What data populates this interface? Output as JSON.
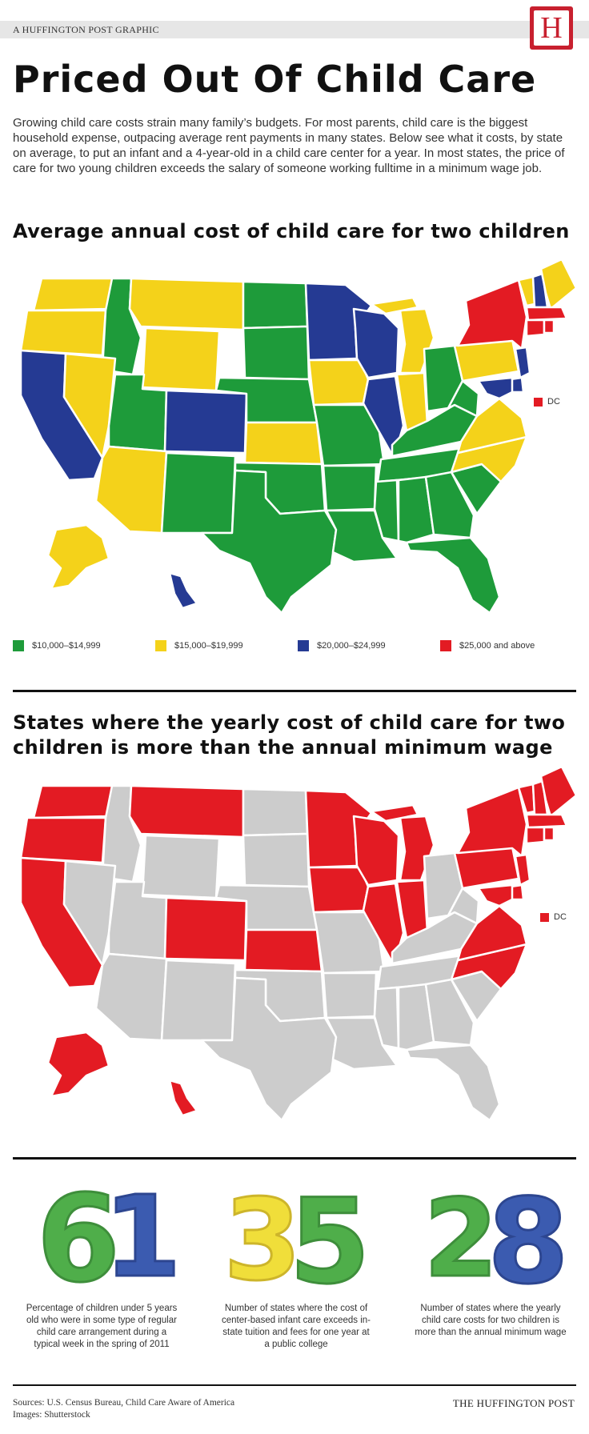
{
  "header": {
    "brand_line": "A HUFFINGTON POST GRAPHIC",
    "logo_letter": "H",
    "logo_color": "#c8202f"
  },
  "title": "Priced Out Of Child Care",
  "intro": "Growing child care costs strain many family’s budgets. For most parents, child care is the biggest household expense, outpacing average rent payments in many states. Below see what it costs, by state on average, to put an infant and a 4-year-old in a child care center for a year. In most states, the price of care for two young children exceeds the salary of someone working fulltime in a minimum wage job.",
  "map1": {
    "heading": "Average annual cost of child care for two children",
    "dc_label": "DC",
    "legend": [
      {
        "label": "$10,000–$14,999",
        "color": "#1e9b3a"
      },
      {
        "label": "$15,000–$19,999",
        "color": "#f4d21a"
      },
      {
        "label": "$20,000–$24,999",
        "color": "#253a93"
      },
      {
        "label": "$25,000 and above",
        "color": "#e31b23"
      }
    ]
  },
  "map2": {
    "heading": "States where the yearly cost of child care for two children is more than the annual minimum wage",
    "dc_label": "DC",
    "highlight_color": "#e31b23",
    "other_color": "#cccccc"
  },
  "stats": [
    {
      "number": "61",
      "caption": "Percentage of children under 5 years old who were in some type of regular child care arrangement during a typical week in the spring of 2011",
      "colors": [
        "#4fae4a",
        "#3b5bb0"
      ]
    },
    {
      "number": "35",
      "caption": "Number of states where the cost of center-based infant care exceeds in-state tuition and fees for one year at a public college",
      "colors": [
        "#f0de3a",
        "#4fae4a"
      ]
    },
    {
      "number": "28",
      "caption": "Number of states where the yearly child care costs for two children is more than the annual minimum wage",
      "colors": [
        "#4fae4a",
        "#3b5bb0"
      ]
    }
  ],
  "footer": {
    "sources": "Sources: U.S. Census Bureau, Child Care Aware of America",
    "images": "Images: Shutterstock",
    "brand": "THE HUFFINGTON POST"
  }
}
